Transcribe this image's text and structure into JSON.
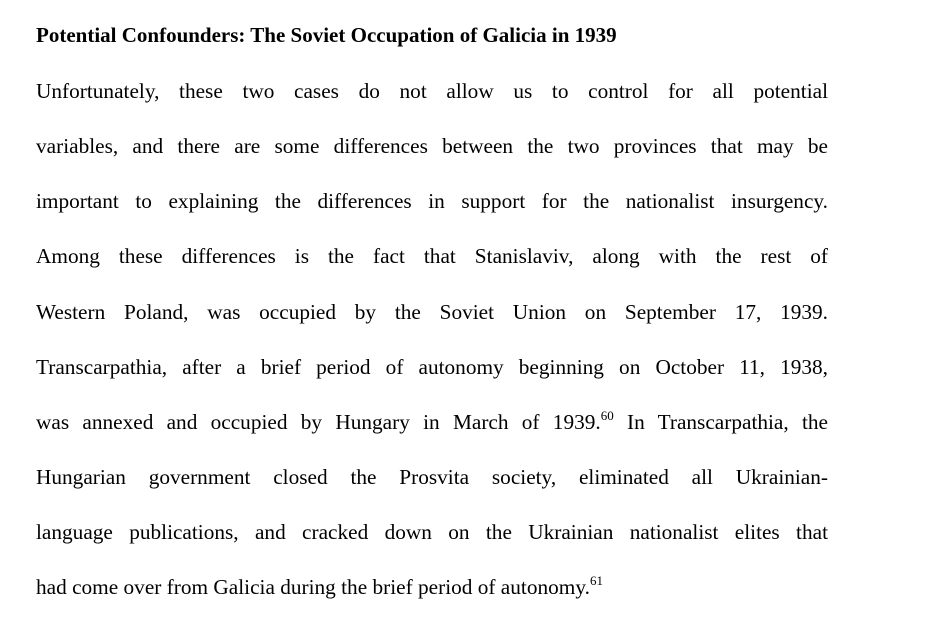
{
  "document": {
    "heading": "Potential Confounders: The Soviet Occupation of Galicia in 1939",
    "paragraph": {
      "line1": "Unfortunately, these two cases do not allow us to control for all potential",
      "line2": "variables, and there are some differences between the two provinces that may be",
      "line3": "important to explaining the differences in support for the nationalist insurgency.",
      "line4": "Among these differences is the fact that Stanislaviv, along with the rest of",
      "line5": "Western Poland, was occupied by the Soviet Union on September 17, 1939.",
      "line6": "Transcarpathia, after a brief period of autonomy beginning on October 11, 1938,",
      "line7_before_note": "was annexed and occupied by Hungary in March of 1939.",
      "footnote_60": "60",
      "line7_after_note": " In Transcarpathia, the",
      "line8": "Hungarian government closed the Prosvita society, eliminated all Ukrainian-",
      "line9": "language publications, and cracked down on the Ukrainian nationalist elites that",
      "line10": "had come over from Galicia during the brief period of autonomy.",
      "footnote_61": "61"
    }
  }
}
